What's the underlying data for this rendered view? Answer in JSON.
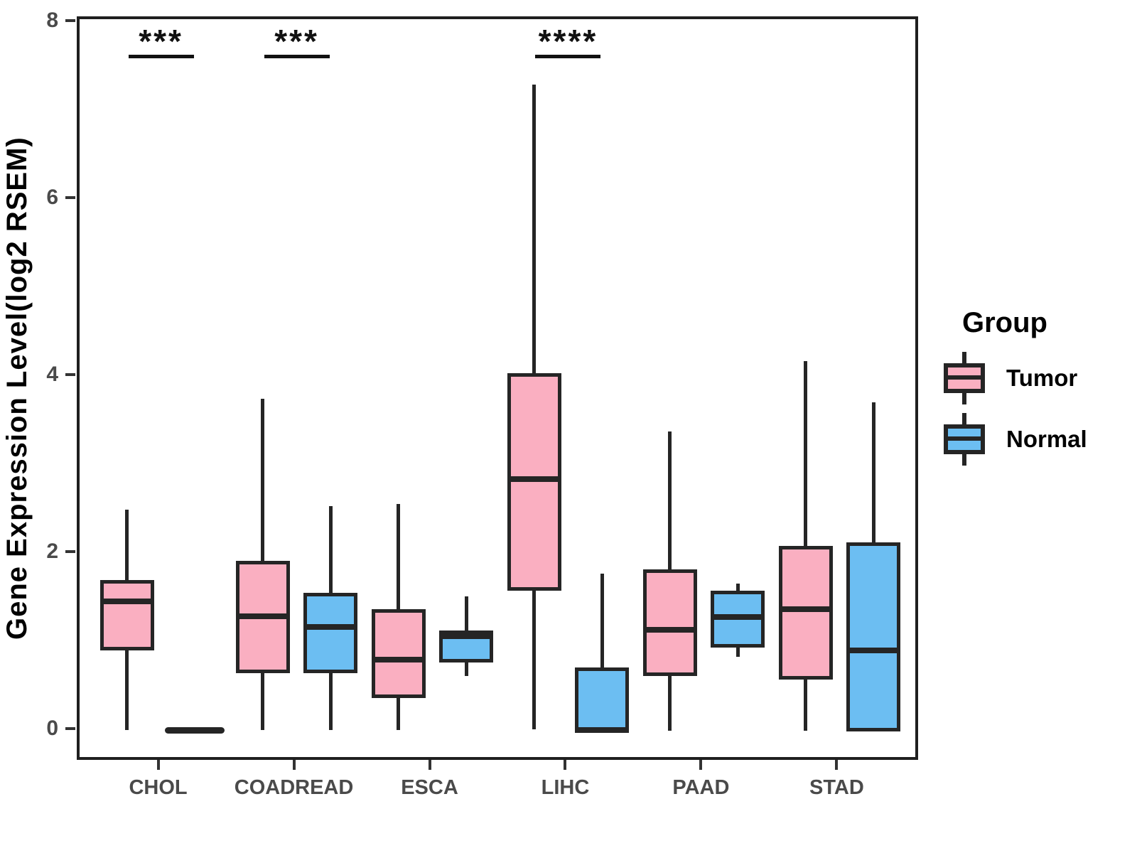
{
  "figure": {
    "y_axis_title": "Gene Expression Level(log2 RSEM)"
  },
  "legend": {
    "title": "Group",
    "entries": [
      {
        "label": "Tumor",
        "color": "#FAAFC1"
      },
      {
        "label": "Normal",
        "color": "#6CBEF2"
      }
    ]
  },
  "chart_data": {
    "type": "boxplot",
    "title": "",
    "xlabel": "",
    "ylabel": "Gene Expression Level(log2 RSEM)",
    "ylim": [
      0,
      8
    ],
    "y_tick_values": [
      0,
      2,
      4,
      6,
      8
    ],
    "y_tick_labels": [
      "0",
      "2",
      "4",
      "6",
      "8"
    ],
    "grid": false,
    "legend_position": "right",
    "categories": [
      "CHOL",
      "COADREAD",
      "ESCA",
      "LIHC",
      "PAAD",
      "STAD"
    ],
    "series": [
      {
        "name": "Tumor",
        "color": "#FAAFC1",
        "boxes": [
          {
            "min": 0.02,
            "q1": 0.92,
            "median": 1.47,
            "q3": 1.71,
            "max": 2.51
          },
          {
            "min": 0.02,
            "q1": 0.66,
            "median": 1.3,
            "q3": 1.93,
            "max": 3.76
          },
          {
            "min": 0.02,
            "q1": 0.38,
            "median": 0.81,
            "q3": 1.38,
            "max": 2.57
          },
          {
            "min": 0.02,
            "q1": 1.59,
            "median": 2.85,
            "q3": 4.05,
            "max": 7.31
          },
          {
            "min": 0.01,
            "q1": 0.63,
            "median": 1.15,
            "q3": 1.83,
            "max": 3.39
          },
          {
            "min": 0.01,
            "q1": 0.59,
            "median": 1.38,
            "q3": 2.1,
            "max": 4.19
          }
        ]
      },
      {
        "name": "Normal",
        "color": "#6CBEF2",
        "boxes": [
          {
            "min": 0.0,
            "q1": 0.0,
            "median": 0.01,
            "q3": 0.01,
            "max": 0.01
          },
          {
            "min": 0.02,
            "q1": 0.66,
            "median": 1.18,
            "q3": 1.57,
            "max": 2.55
          },
          {
            "min": 0.63,
            "q1": 0.78,
            "median": 1.08,
            "q3": 1.14,
            "max": 1.53
          },
          {
            "min": 0.0,
            "q1": 0.0,
            "median": 0.02,
            "q3": 0.72,
            "max": 1.78
          },
          {
            "min": 0.84,
            "q1": 0.95,
            "median": 1.29,
            "q3": 1.59,
            "max": 1.67
          },
          {
            "min": 0.0,
            "q1": 0.0,
            "median": 0.92,
            "q3": 2.14,
            "max": 3.72
          }
        ]
      }
    ],
    "annotations": [
      {
        "category": "CHOL",
        "label": "***",
        "bar_y": 7.63
      },
      {
        "category": "COADREAD",
        "label": "***",
        "bar_y": 7.63
      },
      {
        "category": "LIHC",
        "label": "****",
        "bar_y": 7.63
      }
    ]
  }
}
